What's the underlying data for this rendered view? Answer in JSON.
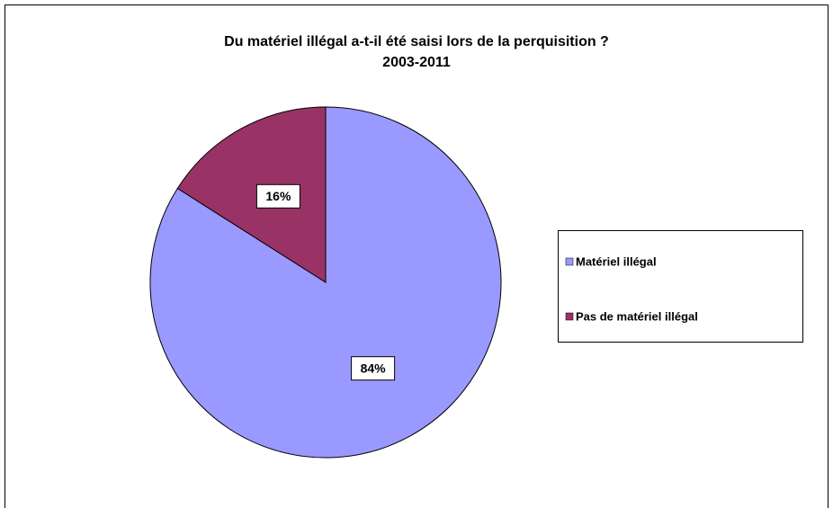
{
  "chart_data": {
    "type": "pie",
    "title": "Du matériel illégal a-t-il été saisi lors de la perquisition ?",
    "subtitle": "2003-2011",
    "categories": [
      "Matériel illégal",
      "Pas de matériel illégal"
    ],
    "values": [
      84,
      16
    ],
    "value_labels": [
      "84%",
      "16%"
    ],
    "colors": [
      "#9999ff",
      "#993366"
    ],
    "legend": "right"
  }
}
